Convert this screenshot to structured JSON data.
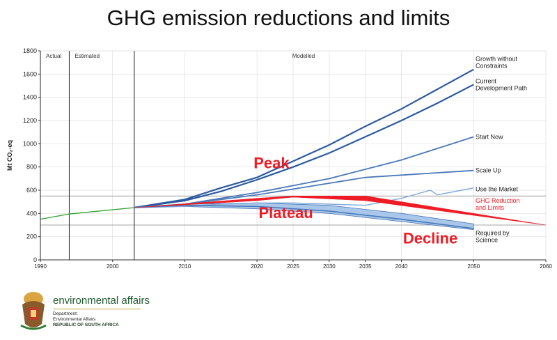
{
  "title": "GHG emission reductions and limits",
  "chart_data": {
    "type": "line",
    "ylabel": "Mt CO₂-eq",
    "ylim": [
      0,
      1800
    ],
    "xlim": [
      1990,
      2060
    ],
    "yticks": [
      0,
      200,
      400,
      600,
      800,
      1000,
      1200,
      1400,
      1600,
      1800
    ],
    "xticks": [
      1990,
      2000,
      2010,
      2020,
      2025,
      2030,
      2035,
      2040,
      2050,
      2060
    ],
    "grid": true,
    "periods": [
      {
        "label": "Actual",
        "from": 1990,
        "to": 1994
      },
      {
        "label": "Estimated",
        "from": 1994,
        "to": 2003
      },
      {
        "label": "Modelled",
        "from": 2003,
        "to": 2050
      }
    ],
    "reference_lines_y": [
      550,
      300
    ],
    "historical": {
      "name": "Historical",
      "x": [
        1990,
        1994,
        2003
      ],
      "y": [
        350,
        395,
        450
      ]
    },
    "series": [
      {
        "name": "Growth without Constraints",
        "x": [
          2003,
          2010,
          2015,
          2020,
          2025,
          2030,
          2035,
          2040,
          2045,
          2050
        ],
        "y": [
          450,
          520,
          620,
          710,
          850,
          990,
          1150,
          1300,
          1470,
          1640
        ]
      },
      {
        "name": "Current Development Path",
        "x": [
          2003,
          2010,
          2015,
          2020,
          2025,
          2030,
          2035,
          2040,
          2045,
          2050
        ],
        "y": [
          450,
          510,
          590,
          690,
          800,
          920,
          1060,
          1200,
          1350,
          1510
        ]
      },
      {
        "name": "Start Now",
        "x": [
          2003,
          2010,
          2015,
          2020,
          2025,
          2030,
          2035,
          2040,
          2045,
          2050
        ],
        "y": [
          450,
          480,
          530,
          580,
          640,
          700,
          780,
          860,
          960,
          1060
        ]
      },
      {
        "name": "Scale Up",
        "x": [
          2003,
          2010,
          2015,
          2020,
          2025,
          2030,
          2035,
          2040,
          2045,
          2050
        ],
        "y": [
          450,
          480,
          520,
          560,
          610,
          660,
          710,
          730,
          750,
          770
        ]
      },
      {
        "name": "Use the Market",
        "x": [
          2003,
          2010,
          2015,
          2020,
          2025,
          2030,
          2035,
          2040,
          2044,
          2045,
          2050
        ],
        "y": [
          450,
          460,
          480,
          490,
          490,
          480,
          470,
          530,
          600,
          560,
          620
        ]
      },
      {
        "name": "Required by Science",
        "x": [
          2003,
          2010,
          2020,
          2030,
          2040,
          2050
        ],
        "y": [
          450,
          470,
          460,
          420,
          350,
          270
        ]
      }
    ],
    "required_band": {
      "x": [
        2003,
        2010,
        2020,
        2030,
        2040,
        2050
      ],
      "upper": [
        450,
        480,
        490,
        470,
        400,
        310
      ],
      "lower": [
        450,
        460,
        440,
        400,
        330,
        260
      ]
    },
    "ghg_limits": {
      "name": "GHG Reduction and Limits",
      "color": "#ee1c25",
      "upper": {
        "x": [
          2003,
          2020,
          2025,
          2035,
          2060
        ],
        "y": [
          450,
          530,
          550,
          550,
          300
        ]
      },
      "lower": {
        "x": [
          2003,
          2020,
          2025,
          2035,
          2060
        ],
        "y": [
          450,
          510,
          540,
          510,
          300
        ]
      }
    },
    "annotations": [
      {
        "text": "Peak",
        "x": 2022,
        "y": 790
      },
      {
        "text": "Plateau",
        "x": 2024,
        "y": 360
      },
      {
        "text": "Decline",
        "x": 2044,
        "y": 140
      }
    ],
    "series_labels": {
      "growth": [
        "Growth without",
        "Constraints"
      ],
      "current": [
        "Current",
        "Development Path"
      ],
      "start": [
        "Start Now"
      ],
      "scale": [
        "Scale Up"
      ],
      "market": [
        "Use the Market"
      ],
      "ghg": [
        "GHG Reduction",
        "and Limits"
      ],
      "required": [
        "Required by",
        "Science"
      ]
    },
    "colors": {
      "dark": "#2c5aa0",
      "mid": "#4a78b8",
      "light": "#7fa8d8",
      "band": "#a9c7ea",
      "green": "#2ea02c",
      "red": "#ee1c25"
    }
  },
  "footer": {
    "department_name": "environmental affairs",
    "line1": "Department:",
    "line2": "Environmental Affairs",
    "line3": "REPUBLIC OF SOUTH AFRICA"
  }
}
